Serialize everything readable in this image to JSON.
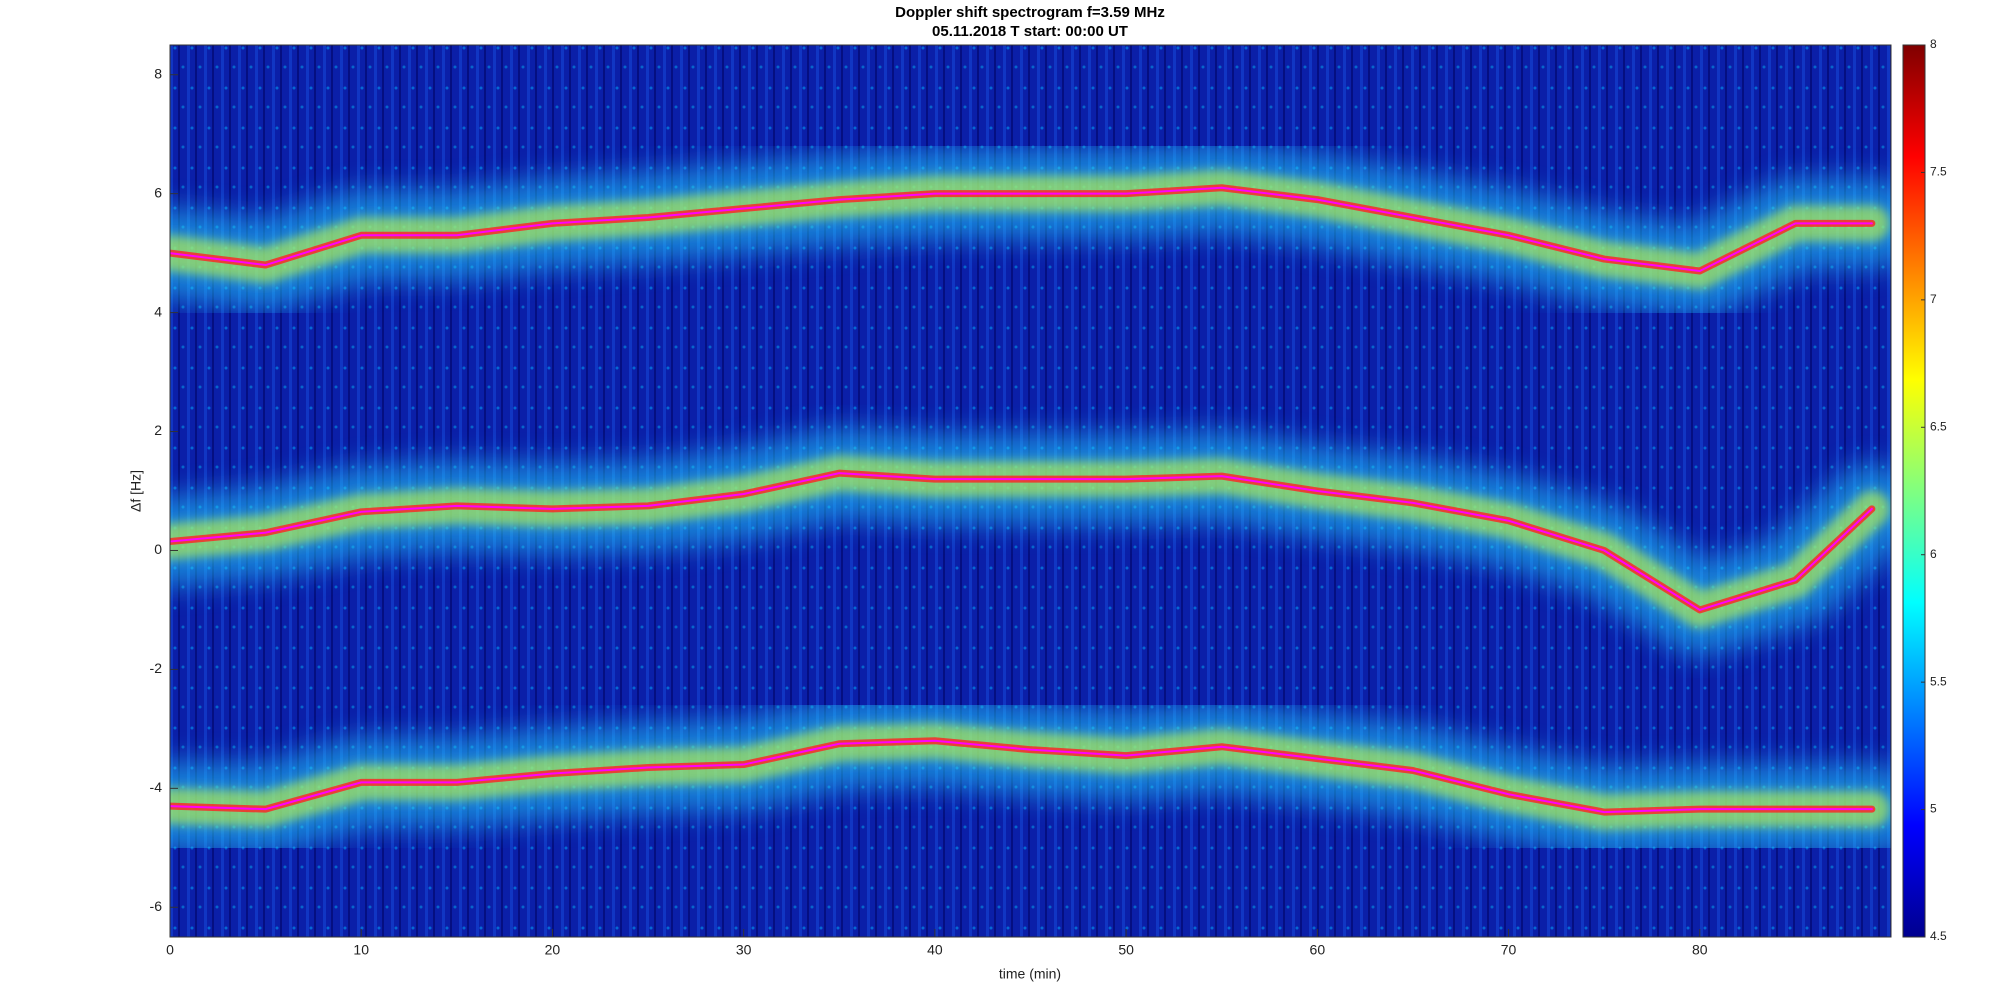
{
  "chart_data": {
    "type": "spectrogram",
    "title": "Doppler shift spectrogram f=3.59 MHz",
    "subtitle": "05.11.2018   T start: 00:00 UT",
    "x_label": "time (min)",
    "y_label": "Δf [Hz]",
    "x": [
      0,
      5,
      10,
      15,
      20,
      25,
      30,
      35,
      40,
      45,
      50,
      55,
      60,
      65,
      70,
      75,
      80,
      85,
      89
    ],
    "series": [
      {
        "color": "#ff00ff",
        "values": [
          5.0,
          4.8,
          5.3,
          5.3,
          5.5,
          5.6,
          5.75,
          5.9,
          6.0,
          6.0,
          6.0,
          6.1,
          5.9,
          5.6,
          5.3,
          4.9,
          4.7,
          5.5,
          5.5
        ]
      },
      {
        "color": "#ff00ff",
        "values": [
          0.15,
          0.3,
          0.65,
          0.75,
          0.7,
          0.75,
          0.95,
          1.3,
          1.2,
          1.2,
          1.2,
          1.25,
          1.0,
          0.8,
          0.5,
          0.0,
          -1.0,
          -0.5,
          0.7
        ]
      },
      {
        "color": "#ff00ff",
        "values": [
          -4.3,
          -4.35,
          -3.9,
          -3.9,
          -3.75,
          -3.65,
          -3.6,
          -3.25,
          -3.2,
          -3.35,
          -3.45,
          -3.3,
          -3.5,
          -3.7,
          -4.1,
          -4.4,
          -4.35,
          -4.35,
          -4.35
        ]
      }
    ],
    "xlim": [
      0,
      90
    ],
    "xticks": [
      0,
      10,
      20,
      30,
      40,
      50,
      60,
      70,
      80
    ],
    "ylim": [
      -6.5,
      8.5
    ],
    "yticks": [
      -6,
      -4,
      -2,
      0,
      2,
      4,
      6,
      8
    ],
    "colorbar": {
      "colormap": "jet",
      "lim": [
        4.5,
        8
      ],
      "ticks": [
        4.5,
        5,
        5.5,
        6,
        6.5,
        7,
        7.5,
        8
      ]
    }
  }
}
